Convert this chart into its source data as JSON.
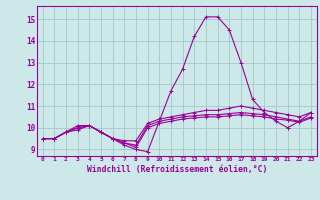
{
  "xlabel": "Windchill (Refroidissement éolien,°C)",
  "bg_color": "#cce8e8",
  "grid_color": "#aacccc",
  "line_color": "#990099",
  "xlim": [
    -0.5,
    23.5
  ],
  "ylim": [
    8.7,
    15.6
  ],
  "xticks": [
    0,
    1,
    2,
    3,
    4,
    5,
    6,
    7,
    8,
    9,
    10,
    11,
    12,
    13,
    14,
    15,
    16,
    17,
    18,
    19,
    20,
    21,
    22,
    23
  ],
  "yticks": [
    9,
    10,
    11,
    12,
    13,
    14,
    15
  ],
  "series": [
    [
      9.5,
      9.5,
      9.8,
      9.9,
      10.1,
      9.8,
      9.5,
      9.2,
      9.0,
      8.9,
      10.3,
      11.7,
      12.7,
      14.2,
      15.1,
      15.1,
      14.5,
      13.0,
      11.3,
      10.7,
      10.3,
      10.0,
      10.3,
      10.7
    ],
    [
      9.5,
      9.5,
      9.8,
      10.1,
      10.1,
      9.8,
      9.5,
      9.4,
      9.4,
      10.2,
      10.4,
      10.5,
      10.6,
      10.7,
      10.8,
      10.8,
      10.9,
      11.0,
      10.9,
      10.8,
      10.7,
      10.6,
      10.5,
      10.7
    ],
    [
      9.5,
      9.5,
      9.8,
      10.0,
      10.1,
      9.8,
      9.5,
      9.3,
      9.2,
      10.1,
      10.3,
      10.4,
      10.5,
      10.55,
      10.6,
      10.6,
      10.65,
      10.7,
      10.65,
      10.6,
      10.5,
      10.4,
      10.3,
      10.5
    ],
    [
      9.5,
      9.5,
      9.8,
      10.0,
      10.1,
      9.8,
      9.5,
      9.3,
      9.1,
      10.0,
      10.2,
      10.3,
      10.4,
      10.45,
      10.5,
      10.5,
      10.55,
      10.6,
      10.55,
      10.5,
      10.4,
      10.35,
      10.25,
      10.45
    ]
  ]
}
